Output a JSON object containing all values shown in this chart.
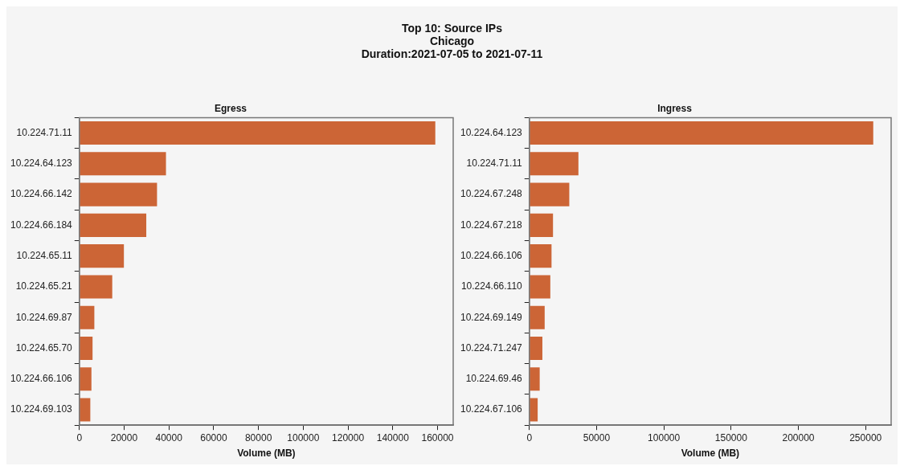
{
  "chart_data": [
    {
      "type": "other",
      "title": "Top 10: Source IPs\nChicago\nDuration:2021-07-05 to 2021-07-11"
    },
    {
      "type": "bar",
      "orientation": "horizontal",
      "title": "Egress",
      "xlabel": "Volume (MB)",
      "categories": [
        "10.224.71.11",
        "10.224.64.123",
        "10.224.66.142",
        "10.224.66.184",
        "10.224.65.11",
        "10.224.65.21",
        "10.224.69.87",
        "10.224.65.70",
        "10.224.66.106",
        "10.224.69.103"
      ],
      "values": [
        159000,
        38700,
        34700,
        29900,
        19900,
        14700,
        6700,
        5900,
        5400,
        4900
      ],
      "color": "#cc6536",
      "xlim": [
        0,
        167000
      ],
      "xticks": [
        0,
        20000,
        40000,
        60000,
        80000,
        100000,
        120000,
        140000,
        160000
      ],
      "grid": false,
      "legend": false
    },
    {
      "type": "bar",
      "orientation": "horizontal",
      "title": "Ingress",
      "xlabel": "Volume (MB)",
      "categories": [
        "10.224.64.123",
        "10.224.71.11",
        "10.224.67.248",
        "10.224.67.218",
        "10.224.66.106",
        "10.224.66.110",
        "10.224.69.149",
        "10.224.71.247",
        "10.224.69.46",
        "10.224.67.106"
      ],
      "values": [
        255700,
        36500,
        29700,
        17600,
        16500,
        15600,
        11400,
        9700,
        7700,
        6200
      ],
      "color": "#cc6536",
      "xlim": [
        0,
        269000
      ],
      "xticks": [
        0,
        50000,
        100000,
        150000,
        200000,
        250000
      ],
      "grid": false,
      "legend": false
    }
  ]
}
